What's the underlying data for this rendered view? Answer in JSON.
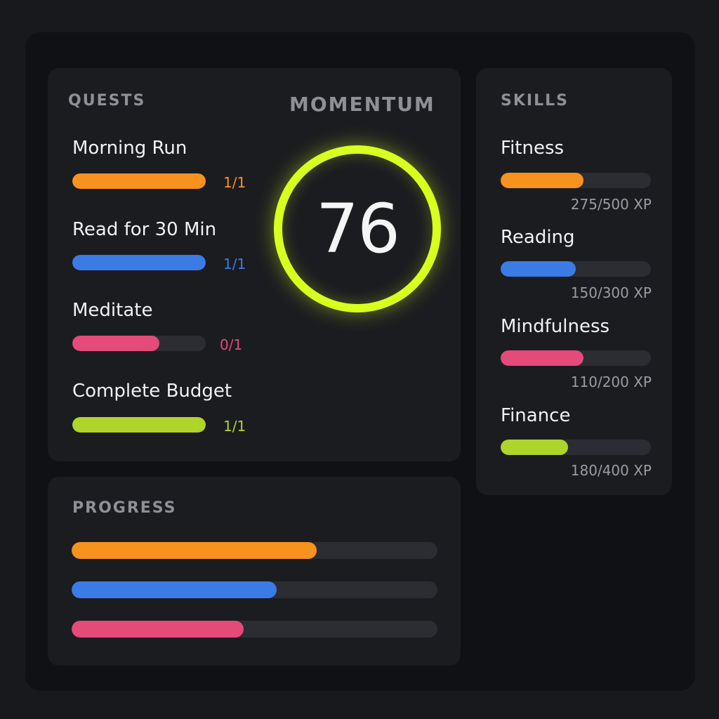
{
  "quests": {
    "title": "QUESTS",
    "items": [
      {
        "name": "Morning Run",
        "count": "1/1",
        "color": "#f7921e",
        "progress": 1.0
      },
      {
        "name": "Read for 30 Min",
        "count": "1/1",
        "color": "#3b7be6",
        "progress": 1.0
      },
      {
        "name": "Meditate",
        "count": "0/1",
        "color": "#e44a7a",
        "progress": 0.65
      },
      {
        "name": "Complete Budget",
        "count": "1/1",
        "color": "#afd42a",
        "progress": 1.0
      }
    ]
  },
  "momentum": {
    "title": "MOMENTUM",
    "value": "76",
    "ring_color": "#d9ff1f"
  },
  "skills": {
    "title": "SKILLS",
    "items": [
      {
        "name": "Fitness",
        "xp": "275/500 XP",
        "color": "#f7921e",
        "progress": 0.55
      },
      {
        "name": "Reading",
        "xp": "150/300 XP",
        "color": "#3b7be6",
        "progress": 0.5
      },
      {
        "name": "Mindfulness",
        "xp": "110/200 XP",
        "color": "#e44a7a",
        "progress": 0.55
      },
      {
        "name": "Finance",
        "xp": "180/400 XP",
        "color": "#afd42a",
        "progress": 0.45
      }
    ]
  },
  "progress": {
    "title": "PROGRESS",
    "bars": [
      {
        "color": "#f7921e",
        "progress": 0.67
      },
      {
        "color": "#3b7be6",
        "progress": 0.56
      },
      {
        "color": "#e44a7a",
        "progress": 0.47
      }
    ]
  }
}
